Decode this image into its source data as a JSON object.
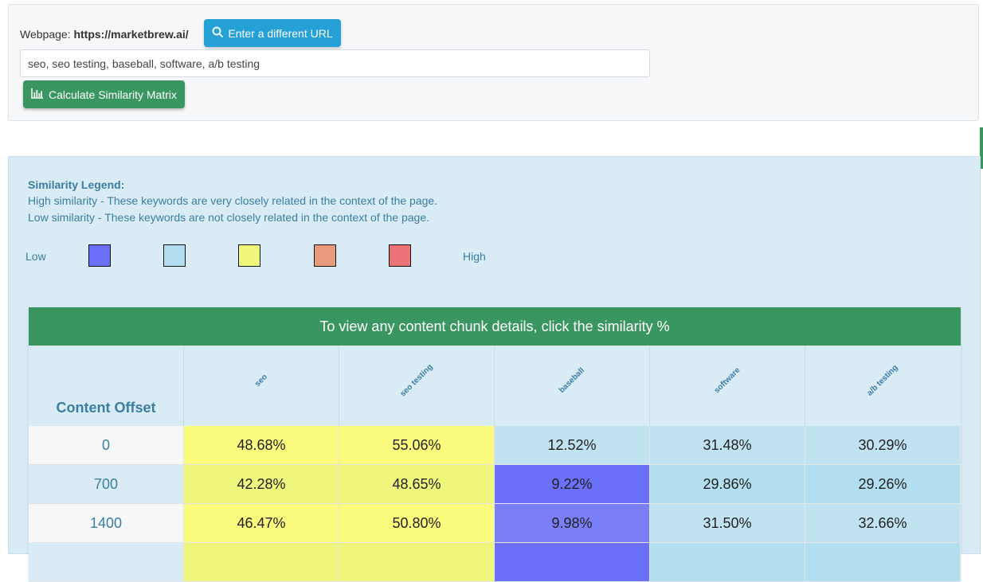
{
  "header": {
    "webpage_label": "Webpage:",
    "webpage_url": "https://marketbrew.ai/",
    "change_url_label": "Enter a different URL",
    "keywords_value": "seo, seo testing, baseball, software, a/b testing",
    "calculate_label": "Calculate Similarity Matrix",
    "icons": {
      "url_button": "search-icon",
      "calculate_button": "bar-chart-icon"
    }
  },
  "legend": {
    "title": "Similarity Legend:",
    "high_text": "High similarity - These keywords are very closely related in the context of the page.",
    "low_text": "Low similarity - These keywords are not closely related in the context of the page.",
    "low_label": "Low",
    "high_label": "High",
    "swatches": [
      "#6a70f7",
      "#b3def0",
      "#eef77c",
      "#e99a7c",
      "#ec7377"
    ]
  },
  "matrix": {
    "banner": "To view any content chunk details, click the similarity %",
    "offset_header": "Content Offset",
    "keywords": [
      "seo",
      "seo testing",
      "baseball",
      "software",
      "a/b testing"
    ],
    "rows": [
      {
        "offset": "0",
        "values": [
          "48.68%",
          "55.06%",
          "12.52%",
          "31.48%",
          "30.29%"
        ],
        "colors": [
          "#fbfb7e",
          "#fbfb7e",
          "#c0e2f1",
          "#c0e2f1",
          "#c0e2f1"
        ]
      },
      {
        "offset": "700",
        "values": [
          "42.28%",
          "48.65%",
          "9.22%",
          "29.86%",
          "29.26%"
        ],
        "colors": [
          "#eef77c",
          "#eef77c",
          "#6a70f7",
          "#b3def0",
          "#b3def0"
        ]
      },
      {
        "offset": "1400",
        "values": [
          "46.47%",
          "50.80%",
          "9.98%",
          "31.50%",
          "32.66%"
        ],
        "colors": [
          "#fbfb7e",
          "#fbfb7e",
          "#7b7ff7",
          "#c0e2f1",
          "#c0e2f1"
        ]
      },
      {
        "offset": "",
        "values": [
          "",
          "",
          "",
          "",
          ""
        ],
        "colors": [
          "#eef77c",
          "#eef77c",
          "#6a70f7",
          "#b3def0",
          "#b3def0"
        ]
      }
    ]
  }
}
